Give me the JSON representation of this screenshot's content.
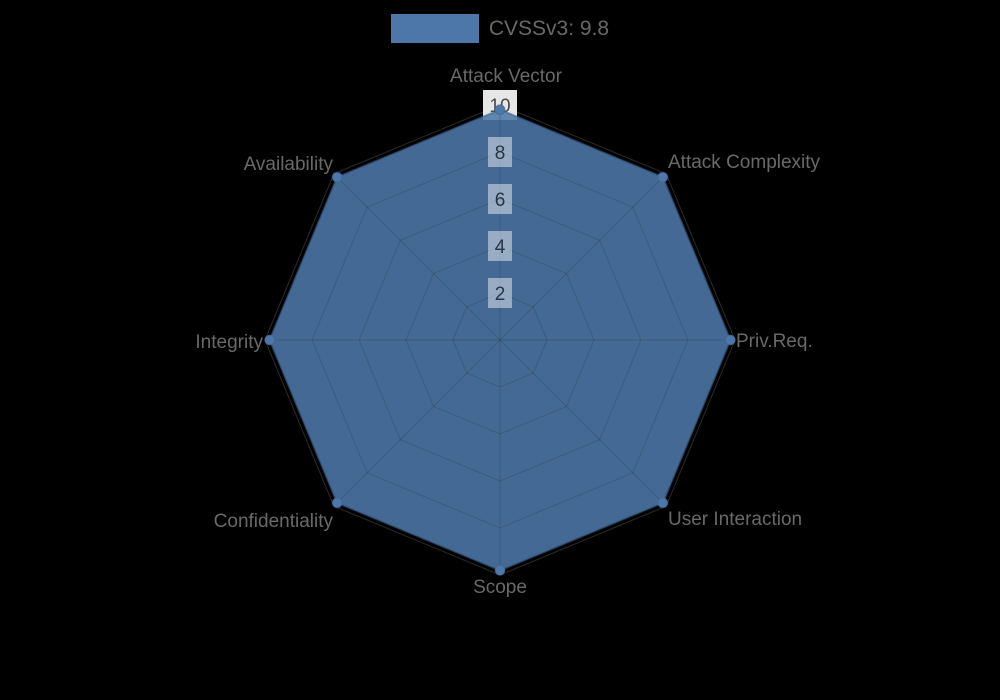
{
  "chart_data": {
    "type": "radar",
    "legend": [
      {
        "label": "CVSSv3: 9.8",
        "color": "#4d77a8"
      }
    ],
    "legend_position": "top",
    "axes": [
      "Attack Vector",
      "Attack Complexity",
      "Priv.Req.",
      "User Interaction",
      "Scope",
      "Confidentiality",
      "Integrity",
      "Availability"
    ],
    "series": [
      {
        "name": "CVSSv3: 9.8",
        "values": [
          9.8,
          9.8,
          9.8,
          9.8,
          9.8,
          9.8,
          9.8,
          9.8
        ]
      }
    ],
    "scale": {
      "min": 0,
      "max": 10,
      "tick_step": 2,
      "ticks": [
        2,
        4,
        6,
        8,
        10
      ]
    },
    "grid": "on",
    "grid_shape": "polygon",
    "colors": {
      "series_fill": "#4d77a8",
      "series_fill_opacity": 0.88,
      "series_border": "#3d608c",
      "point": "#4d77a8",
      "grid_line_outer": "rgba(140,140,140,0.3)",
      "grid_line_on_fill": "rgba(0,0,0,0.17)",
      "tick_text": "#4a4a4a",
      "tick_text_on_fill": "rgba(35,45,65,0.95)",
      "tick_backdrop": "rgba(255,255,255,0.9)",
      "tick_backdrop_on_fill": "rgba(255,255,255,0.45)",
      "label_text": "#696969",
      "legend_text": "#696969",
      "background": "#000000"
    }
  }
}
